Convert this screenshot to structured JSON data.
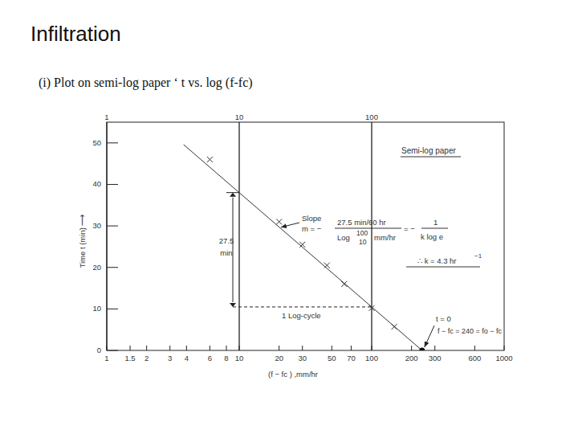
{
  "page_title": "Infiltration",
  "subtitle": "(i) Plot on semi-log paper ‘ t vs. log (f-fc)",
  "chart_data": {
    "type": "scatter",
    "log": "x",
    "grid": true,
    "x_label": "(f − fc ) ,mm/hr",
    "y_label": "Time t (min) ⟶",
    "xlim": [
      1,
      1000
    ],
    "ylim": [
      0,
      55
    ],
    "xticks": [
      1,
      1.5,
      2,
      3,
      4,
      6,
      8,
      10,
      20,
      30,
      50,
      70,
      100,
      200,
      300,
      600,
      1000
    ],
    "top_xticks": [
      1,
      10,
      100
    ],
    "yticks": [
      0,
      10,
      20,
      30,
      40,
      50
    ],
    "series": [
      {
        "type": "scatter",
        "marker": "x",
        "color": "#333333",
        "x": [
          6,
          20,
          30,
          46,
          62,
          100,
          148
        ],
        "values": [
          46,
          31,
          25.5,
          20.5,
          16,
          10.2,
          5.7
        ]
      },
      {
        "type": "line",
        "line_style": "solid",
        "color": "#333333",
        "x": [
          3.8,
          240
        ],
        "values": [
          49.6,
          0
        ]
      },
      {
        "type": "scatter",
        "marker": "dot",
        "color": "#111111",
        "x": [
          240
        ],
        "values": [
          0
        ]
      }
    ],
    "annotations": {
      "paper": "Semi-log paper",
      "slope": "Slope",
      "m": "m = −",
      "num": "27.5 min/60 hr",
      "den_log": "Log",
      "den_top": "100",
      "den_bot": "10",
      "den_unit": "mm/hr",
      "eq": "= −",
      "rhs_num": "1",
      "rhs_den": "k log e",
      "k": "∴ k = 4.3 hr",
      "k_exp": "−1",
      "dim": "27.5",
      "dim_unit": "min",
      "cycle": "1 Log-cycle",
      "t0": "t = 0",
      "f0": "f − fc = 240 = fo − fc"
    }
  }
}
